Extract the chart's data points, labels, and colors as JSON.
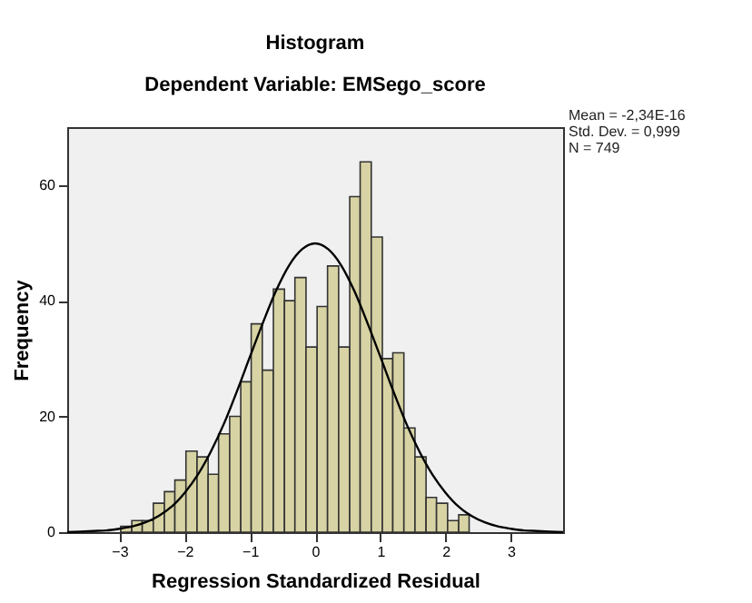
{
  "chart_data": {
    "type": "histogram",
    "title": "Histogram",
    "subtitle": "Dependent Variable: EMSego_score",
    "xlabel": "Regression Standardized Residual",
    "ylabel": "Frequency",
    "annotations": [
      "Mean = -2,34E-16",
      "Std. Dev. = 0,999",
      "N = 749"
    ],
    "bins": [
      -2.98,
      -2.81,
      -2.65,
      -2.48,
      -2.31,
      -2.15,
      -1.98,
      -1.81,
      -1.64,
      -1.48,
      -1.31,
      -1.14,
      -0.98,
      -0.81,
      -0.64,
      -0.47,
      -0.31,
      -0.14,
      0.03,
      0.19,
      0.36,
      0.53,
      0.69,
      0.86,
      1.03,
      1.19,
      1.36,
      1.53,
      1.7,
      1.86,
      2.03,
      2.2,
      2.36
    ],
    "series": [
      {
        "color": "#d8d3a4",
        "values": [
          1,
          2,
          2,
          5,
          7,
          9,
          14,
          13,
          10,
          17,
          20,
          26,
          36,
          28,
          42,
          40,
          44,
          32,
          39,
          46,
          32,
          58,
          64,
          51,
          30,
          31,
          18,
          13,
          6,
          5,
          2,
          3
        ]
      },
      {
        "type": "line",
        "color": "#000000",
        "x": [
          -3.8,
          -3.6,
          -3.4,
          -3.2,
          -3.0,
          -2.8,
          -2.6,
          -2.4,
          -2.2,
          -2.0,
          -1.8,
          -1.6,
          -1.4,
          -1.2,
          -1.0,
          -0.8,
          -0.6,
          -0.4,
          -0.2,
          0,
          0.2,
          0.4,
          0.6,
          0.8,
          1.0,
          1.2,
          1.4,
          1.6,
          1.8,
          2.0,
          2.2,
          2.4,
          2.6,
          2.8,
          3.0,
          3.2,
          3.4,
          3.6,
          3.8
        ],
        "values": [
          0.0,
          0.1,
          0.2,
          0.3,
          0.6,
          1.0,
          1.7,
          2.8,
          4.4,
          6.8,
          9.9,
          13.9,
          18.7,
          24.3,
          30.3,
          36.2,
          41.7,
          46.1,
          48.9,
          49.9,
          48.9,
          46.1,
          41.7,
          36.2,
          30.3,
          24.3,
          18.7,
          13.9,
          9.9,
          6.8,
          4.4,
          2.8,
          1.7,
          1.0,
          0.6,
          0.3,
          0.2,
          0.1,
          0.0
        ]
      }
    ],
    "xlim": [
      -3.8,
      3.8
    ],
    "ylim": [
      0,
      70
    ],
    "xticks": [
      -3,
      -2,
      -1,
      0,
      1,
      2,
      3
    ],
    "yticks": [
      0,
      20,
      40,
      60
    ],
    "grid": false
  }
}
